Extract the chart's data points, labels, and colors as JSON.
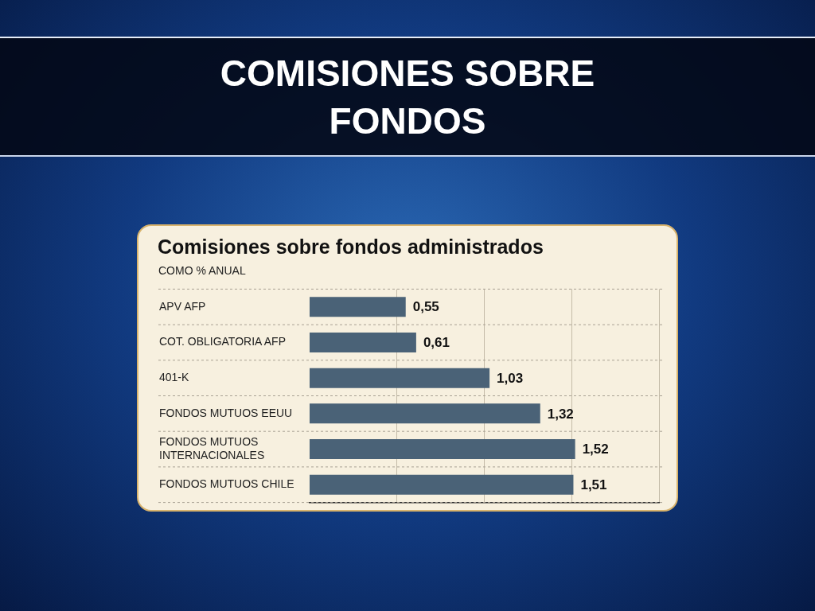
{
  "chart_data": {
    "type": "bar",
    "orientation": "horizontal",
    "title": "COMISIONES SOBRE FONDOS",
    "subtitle": "Comisiones sobre fondos administrados",
    "annotations": [
      "COMO % ANUAL"
    ],
    "categories": [
      "APV AFP",
      "COT. OBLIGATORIA AFP",
      "401-K",
      "FONDOS MUTUOS EEUU",
      "FONDOS MUTUOS INTERNACIONALES",
      "FONDOS MUTUOS CHILE"
    ],
    "values": [
      0.55,
      0.61,
      1.03,
      1.32,
      1.52,
      1.51
    ],
    "value_labels": [
      "0,55",
      "0,61",
      "1,03",
      "1,32",
      "1,52",
      "1,51"
    ],
    "color": "#4a6277",
    "xlim": [
      0,
      2
    ],
    "xticks": [
      {
        "value": 0.5,
        "label": null
      },
      {
        "value": 1,
        "label": null
      },
      {
        "value": 1.5,
        "label": null
      },
      {
        "value": 2,
        "label": null
      }
    ],
    "grid": true,
    "tick_labels": "y"
  }
}
